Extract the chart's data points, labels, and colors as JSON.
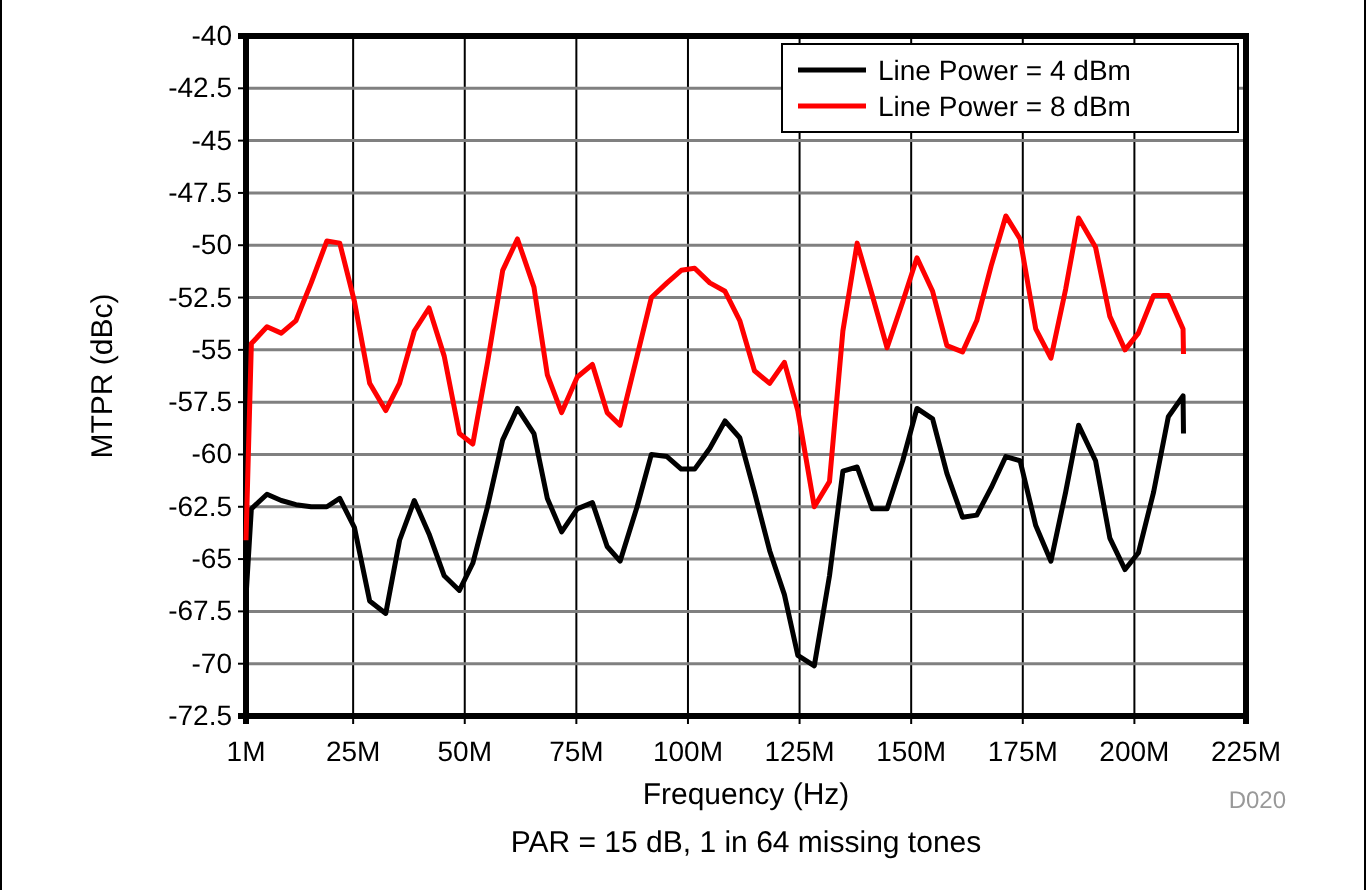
{
  "chart_data": {
    "type": "line",
    "xlabel": "Frequency (Hz)",
    "ylabel": "MTPR (dBc)",
    "x": [
      1,
      2.2,
      5.7,
      8.9,
      12.2,
      15.6,
      19.1,
      22,
      25.3,
      28.7,
      32.3,
      35.4,
      38.7,
      42,
      45.4,
      48.8,
      51.8,
      55.1,
      58.5,
      61.8,
      65.5,
      68.5,
      71.7,
      75.2,
      78.6,
      81.9,
      84.8,
      88.6,
      91.8,
      95.3,
      98.5,
      101.5,
      104.9,
      108.3,
      111.6,
      114.9,
      118.3,
      121.6,
      124.6,
      128.3,
      131.7,
      134.7,
      137.9,
      141.3,
      144.6,
      148.1,
      151.3,
      154.8,
      158,
      161.5,
      164.7,
      167.9,
      171.2,
      174.4,
      177.9,
      181.3,
      184.6,
      187.5,
      191.3,
      194.5,
      197.9,
      200.9,
      204.3,
      207.6,
      210.9,
      211
    ],
    "series": [
      {
        "name": "Line Power = 4 dBm",
        "color": "#000000",
        "values": [
          -66.8,
          -62.6,
          -61.9,
          -62.2,
          -62.4,
          -62.5,
          -62.5,
          -62.1,
          -63.5,
          -67.0,
          -67.6,
          -64.1,
          -62.2,
          -63.8,
          -65.8,
          -66.5,
          -65.2,
          -62.5,
          -59.3,
          -57.8,
          -59.0,
          -62.1,
          -63.7,
          -62.6,
          -62.3,
          -64.4,
          -65.1,
          -62.5,
          -60.0,
          -60.1,
          -60.7,
          -60.7,
          -59.7,
          -58.4,
          -59.2,
          -61.8,
          -64.6,
          -66.7,
          -69.6,
          -70.1,
          -65.8,
          -60.8,
          -60.6,
          -62.6,
          -62.6,
          -60.3,
          -57.8,
          -58.3,
          -60.9,
          -63.0,
          -62.9,
          -61.6,
          -60.1,
          -60.3,
          -63.4,
          -65.1,
          -61.8,
          -58.6,
          -60.3,
          -64.0,
          -65.5,
          -64.7,
          -61.8,
          -58.2,
          -57.2,
          -59.0
        ]
      },
      {
        "name": "Line Power = 8 dBm",
        "color": "#ff0000",
        "values": [
          -64.1,
          -54.7,
          -53.9,
          -54.2,
          -53.6,
          -51.8,
          -49.8,
          -49.9,
          -52.7,
          -56.6,
          -57.9,
          -56.6,
          -54.1,
          -53.0,
          -55.3,
          -59.0,
          -59.5,
          -55.6,
          -51.2,
          -49.7,
          -52.0,
          -56.2,
          -58.0,
          -56.3,
          -55.7,
          -58.0,
          -58.6,
          -55.3,
          -52.5,
          -51.8,
          -51.2,
          -51.1,
          -51.8,
          -52.2,
          -53.6,
          -56.0,
          -56.6,
          -55.6,
          -57.9,
          -62.5,
          -61.3,
          -54.1,
          -49.9,
          -52.4,
          -54.9,
          -52.7,
          -50.6,
          -52.2,
          -54.8,
          -55.1,
          -53.6,
          -51.0,
          -48.6,
          -49.7,
          -54.0,
          -55.4,
          -52.1,
          -48.7,
          -50.1,
          -53.4,
          -55.0,
          -54.2,
          -52.4,
          -52.4,
          -54.0,
          -55.2
        ]
      }
    ],
    "xlim": [
      1,
      225
    ],
    "xticks": [
      {
        "value": 1,
        "label": "1M"
      },
      {
        "value": 25,
        "label": "25M"
      },
      {
        "value": 50,
        "label": "50M"
      },
      {
        "value": 75,
        "label": "75M"
      },
      {
        "value": 100,
        "label": "100M"
      },
      {
        "value": 125,
        "label": "125M"
      },
      {
        "value": 150,
        "label": "150M"
      },
      {
        "value": 175,
        "label": "175M"
      },
      {
        "value": 200,
        "label": "200M"
      },
      {
        "value": 225,
        "label": "225M"
      }
    ],
    "ylim": [
      -72.5,
      -40
    ],
    "yticks": [
      -72.5,
      -70,
      -67.5,
      -65,
      -62.5,
      -60,
      -57.5,
      -55,
      -52.5,
      -50,
      -47.5,
      -45,
      -42.5,
      -40
    ],
    "grid": true,
    "legend": "top right",
    "line_style": "solid",
    "marker": "none",
    "annotations": [
      "D020",
      "PAR = 15 dB, 1 in 64 missing tones"
    ]
  }
}
